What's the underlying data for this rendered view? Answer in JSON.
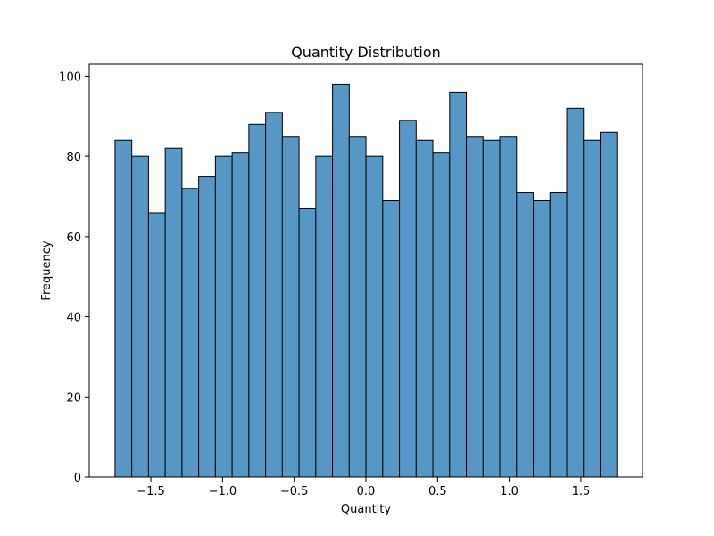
{
  "chart_data": {
    "type": "bar",
    "subtype": "histogram",
    "title": "Quantity Distribution",
    "xlabel": "Quantity",
    "ylabel": "Frequency",
    "bin_start": -1.75,
    "bin_width": 0.1167,
    "values": [
      84,
      80,
      66,
      82,
      72,
      75,
      80,
      81,
      88,
      91,
      85,
      67,
      80,
      98,
      85,
      80,
      69,
      89,
      84,
      81,
      96,
      85,
      84,
      85,
      71,
      69,
      71,
      92,
      84,
      86
    ],
    "xlim": [
      -1.93,
      1.93
    ],
    "ylim": [
      0,
      103
    ],
    "xticks": [
      -1.5,
      -1.0,
      -0.5,
      0.0,
      0.5,
      1.0,
      1.5
    ],
    "xtick_labels": [
      "−1.5",
      "−1.0",
      "−0.5",
      "0.0",
      "0.5",
      "1.0",
      "1.5"
    ],
    "yticks": [
      0,
      20,
      40,
      60,
      80,
      100
    ],
    "ytick_labels": [
      "0",
      "20",
      "40",
      "60",
      "80",
      "100"
    ],
    "bar_color": "#5797c6",
    "edge_color": "#000000",
    "grid": false
  }
}
